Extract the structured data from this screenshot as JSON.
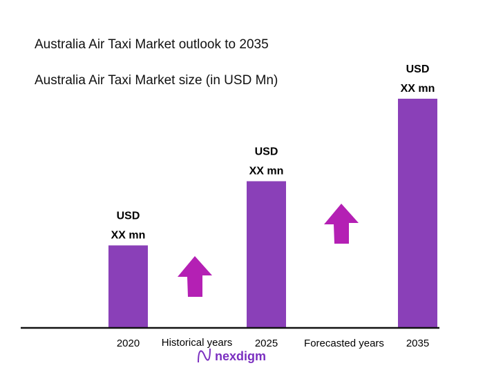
{
  "chart_data": {
    "type": "bar",
    "title": "Australia Air Taxi Market outlook to 2035",
    "subtitle": "Australia Air Taxi  Market size (in USD Mn)",
    "categories": [
      "2020",
      "2025",
      "2035"
    ],
    "values_relative": [
      0.36,
      0.64,
      1.0
    ],
    "data_labels": [
      {
        "line1": "USD",
        "line2": "XX mn"
      },
      {
        "line1": "USD",
        "line2": "XX mn"
      },
      {
        "line1": "USD",
        "line2": "XX mn"
      }
    ],
    "period_labels": [
      "Historical years",
      "Forecasted years"
    ],
    "grid": false,
    "bar_color": "#8a40b8",
    "arrow_color": "#b420b4"
  },
  "logo": {
    "text": "nexdigm",
    "color": "#7b2fc0"
  }
}
